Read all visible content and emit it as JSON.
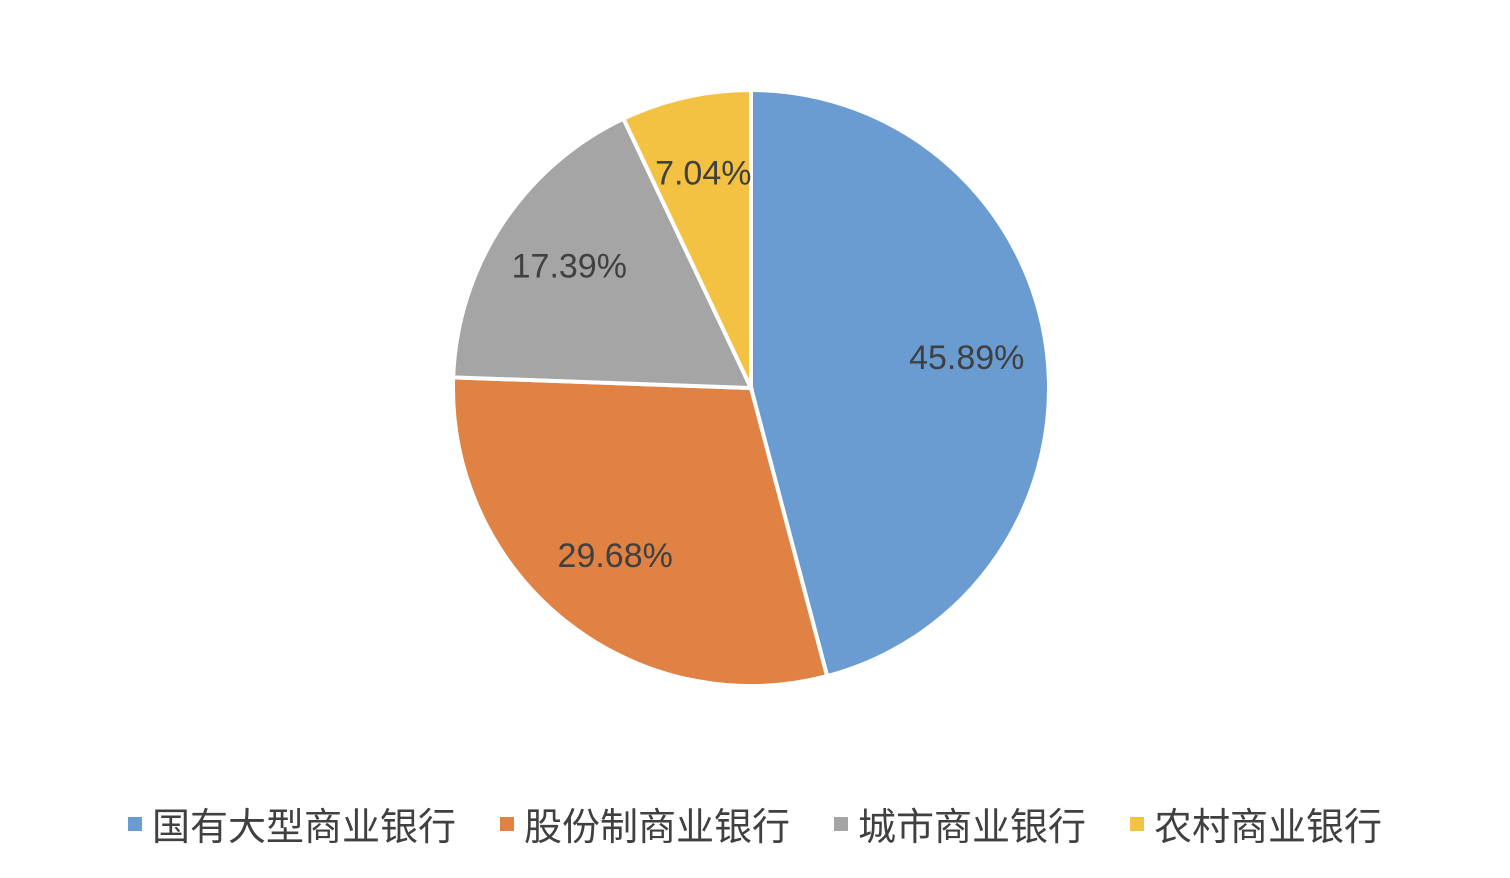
{
  "chart_data": {
    "type": "pie",
    "categories": [
      "国有大型商业银行",
      "股份制商业银行",
      "城市商业银行",
      "农村商业银行"
    ],
    "values": [
      45.89,
      29.68,
      17.39,
      7.04
    ],
    "value_labels": [
      "45.89%",
      "29.68%",
      "17.39%",
      "7.04%"
    ],
    "colors": [
      "#6a9bd1",
      "#e08244",
      "#a5a5a5",
      "#f4c242"
    ],
    "legend": "bottom"
  }
}
